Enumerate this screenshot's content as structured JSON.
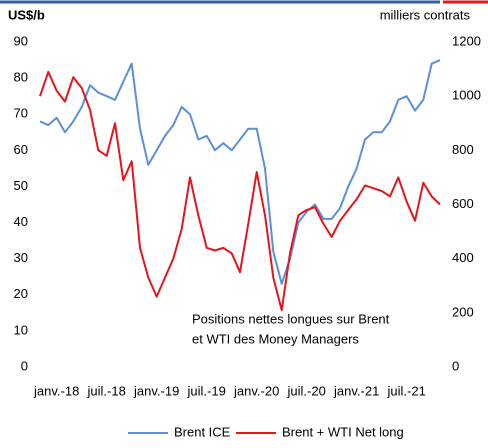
{
  "chart_data": {
    "type": "line",
    "y_label": "US$/b",
    "y2_label": "milliers contrats",
    "annotations": [
      "Positions nettes longues sur Brent",
      "et WTI des Money Managers"
    ],
    "categories": [
      null,
      null,
      "janv.-18",
      null,
      null,
      null,
      null,
      null,
      "juil.-18",
      null,
      null,
      null,
      null,
      null,
      "janv.-19",
      null,
      null,
      null,
      null,
      null,
      "juil.-19",
      null,
      null,
      null,
      null,
      null,
      "janv.-20",
      null,
      null,
      null,
      null,
      null,
      "juil.-20",
      null,
      null,
      null,
      null,
      null,
      "janv.-21",
      null,
      null,
      null,
      null,
      null,
      "juil.-21",
      null,
      null,
      null,
      null
    ],
    "series": [
      {
        "name": "Brent ICE",
        "color": "#5b8fd6",
        "axis": "y",
        "values": [
          68,
          67,
          69,
          65,
          68,
          72,
          78,
          76,
          75,
          74,
          79,
          84,
          66,
          56,
          60,
          64,
          67,
          72,
          70,
          63,
          64,
          60,
          62,
          60,
          63,
          66,
          66,
          55,
          32,
          23,
          30,
          40,
          43,
          45,
          41,
          41,
          44,
          50,
          55,
          63,
          65,
          65,
          68,
          74,
          75,
          71,
          74,
          84,
          85
        ]
      },
      {
        "name": "Brent + WTI Net long",
        "color": "#e8141b",
        "axis": "y2",
        "values": [
          1000,
          1090,
          1020,
          980,
          1070,
          1030,
          950,
          800,
          780,
          900,
          690,
          760,
          440,
          330,
          260,
          330,
          400,
          510,
          700,
          560,
          440,
          430,
          440,
          420,
          350,
          530,
          720,
          560,
          330,
          210,
          420,
          560,
          580,
          590,
          530,
          480,
          540,
          580,
          620,
          670,
          660,
          650,
          630,
          700,
          610,
          540,
          680,
          630,
          600
        ]
      }
    ],
    "ylim": [
      0,
      90
    ],
    "yticks": [
      0,
      10,
      20,
      30,
      40,
      50,
      60,
      70,
      80,
      90
    ],
    "y2lim": [
      0,
      1200
    ],
    "y2ticks": [
      0,
      200,
      400,
      600,
      800,
      1000,
      1200
    ]
  }
}
